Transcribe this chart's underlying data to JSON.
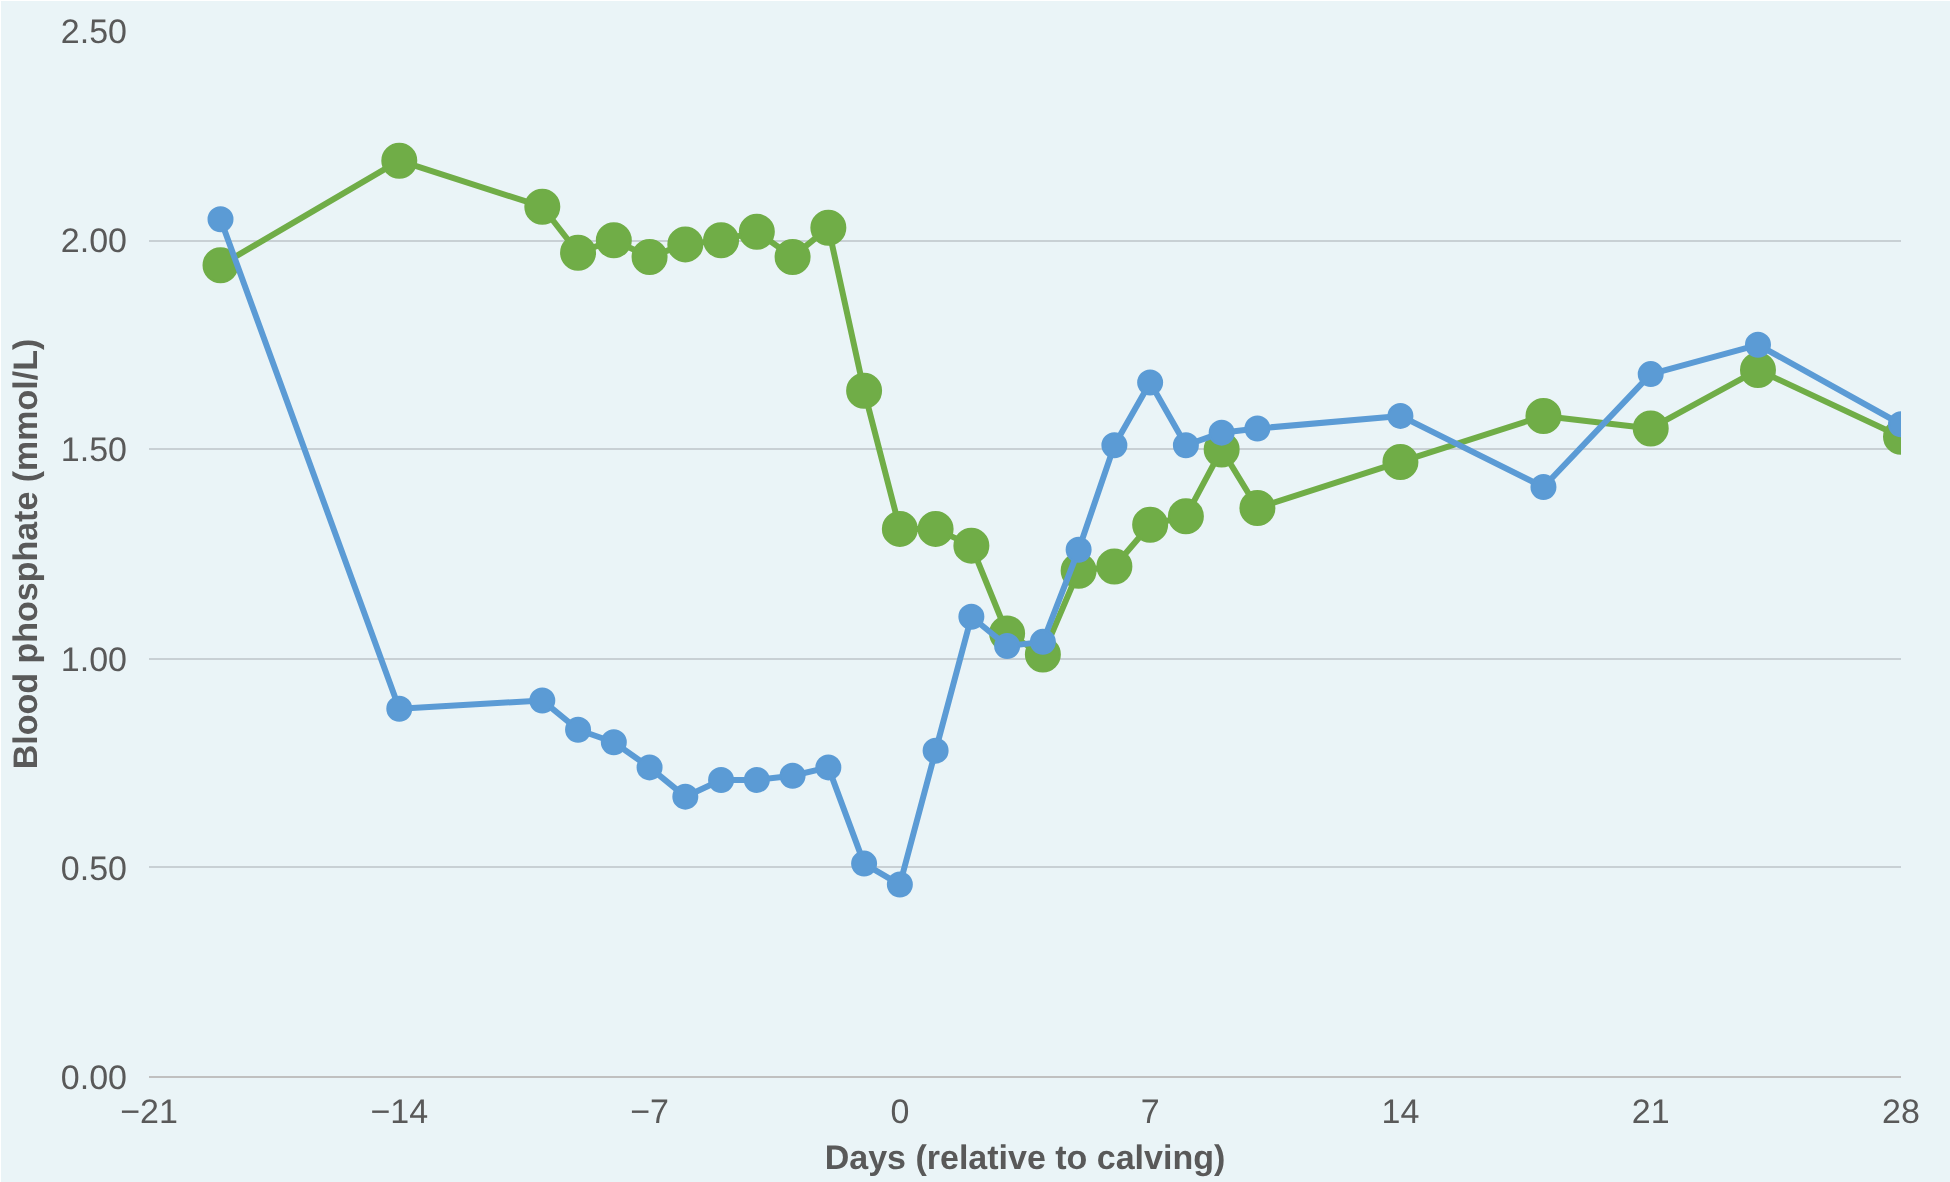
{
  "chart_data": {
    "type": "line",
    "xlabel": "Days (relative to calving)",
    "ylabel": "Blood phosphate (mmol/L)",
    "xlim": [
      -21,
      28
    ],
    "xticks": [
      -21,
      -14,
      -7,
      0,
      7,
      14,
      21,
      28
    ],
    "ylim": [
      0,
      2.5
    ],
    "yticks": [
      {
        "value": 0,
        "label": "0.00"
      },
      {
        "value": 0.5,
        "label": "0.50"
      },
      {
        "value": 1,
        "label": "1.00"
      },
      {
        "value": 1.5,
        "label": "1.50"
      },
      {
        "value": 2,
        "label": "2.00"
      },
      {
        "value": 2.5,
        "label": "2.50"
      }
    ],
    "grid": "y",
    "marker": "circle",
    "line_style": "solid",
    "x": [
      -19,
      -14,
      -10,
      -9,
      -8,
      -7,
      -6,
      -5,
      -4,
      -3,
      -2,
      -1,
      0,
      1,
      2,
      3,
      4,
      5,
      6,
      7,
      8,
      9,
      10,
      14,
      18,
      21,
      24,
      28
    ],
    "series": [
      {
        "color": "#70ad47",
        "values": [
          1.94,
          2.19,
          2.08,
          1.97,
          2.0,
          1.96,
          1.99,
          2.0,
          2.02,
          1.96,
          2.03,
          1.64,
          1.31,
          1.31,
          1.27,
          1.06,
          1.01,
          1.21,
          1.22,
          1.32,
          1.34,
          1.5,
          1.36,
          1.47,
          1.58,
          1.55,
          1.69,
          1.53
        ]
      },
      {
        "color": "#5b9bd5",
        "values": [
          2.05,
          0.88,
          0.9,
          0.83,
          0.8,
          0.74,
          0.67,
          0.71,
          0.71,
          0.72,
          0.74,
          0.51,
          0.46,
          0.78,
          1.1,
          1.03,
          1.04,
          1.26,
          1.51,
          1.66,
          1.51,
          1.54,
          1.55,
          1.58,
          1.41,
          1.68,
          1.75,
          1.56
        ]
      }
    ]
  }
}
